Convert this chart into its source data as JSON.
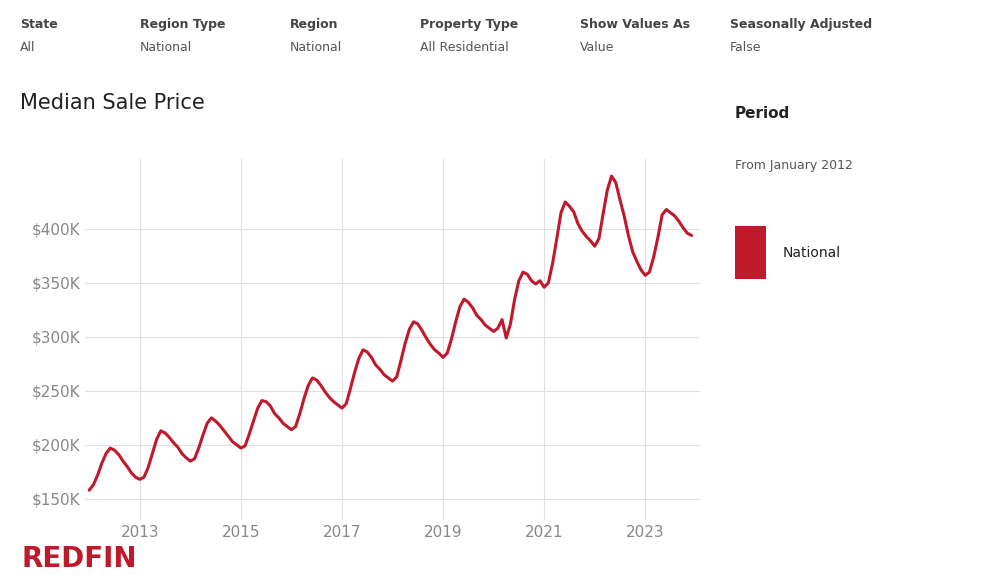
{
  "title": "Median Sale Price",
  "line_color": "#C0192C",
  "background_color": "#FFFFFF",
  "ylim": [
    130000,
    465000
  ],
  "yticks": [
    150000,
    200000,
    250000,
    300000,
    350000,
    400000
  ],
  "header_labels": [
    [
      "State",
      "All"
    ],
    [
      "Region Type",
      "National"
    ],
    [
      "Region",
      "National"
    ],
    [
      "Property Type",
      "All Residential"
    ],
    [
      "Show Values As",
      "Value"
    ],
    [
      "Seasonally Adjusted",
      "False"
    ]
  ],
  "legend_title": "Period",
  "legend_subtitle": "From January 2012",
  "legend_series": "National",
  "redfin_color": "#C0192C",
  "values": [
    158000,
    163000,
    172000,
    183000,
    192000,
    197000,
    195000,
    191000,
    185000,
    180000,
    174000,
    170000,
    168000,
    170000,
    179000,
    192000,
    205000,
    213000,
    211000,
    207000,
    202000,
    198000,
    192000,
    188000,
    185000,
    187000,
    197000,
    209000,
    220000,
    225000,
    222000,
    218000,
    213000,
    208000,
    203000,
    200000,
    197000,
    199000,
    210000,
    222000,
    234000,
    241000,
    240000,
    236000,
    229000,
    225000,
    220000,
    217000,
    214000,
    217000,
    229000,
    243000,
    255000,
    262000,
    260000,
    255000,
    249000,
    244000,
    240000,
    237000,
    234000,
    238000,
    252000,
    267000,
    280000,
    288000,
    286000,
    281000,
    274000,
    270000,
    265000,
    262000,
    259000,
    263000,
    278000,
    294000,
    307000,
    314000,
    312000,
    306000,
    299000,
    293000,
    288000,
    285000,
    281000,
    285000,
    298000,
    314000,
    328000,
    335000,
    332000,
    327000,
    320000,
    316000,
    311000,
    308000,
    305000,
    308000,
    316000,
    299000,
    312000,
    335000,
    352000,
    360000,
    358000,
    352000,
    349000,
    352000,
    346000,
    350000,
    368000,
    391000,
    415000,
    425000,
    421000,
    416000,
    405000,
    398000,
    393000,
    389000,
    384000,
    391000,
    414000,
    436000,
    449000,
    443000,
    427000,
    412000,
    394000,
    379000,
    370000,
    362000,
    357000,
    360000,
    374000,
    392000,
    413000,
    418000,
    415000,
    412000,
    407000,
    401000,
    396000,
    394000
  ],
  "xtick_years": [
    "2013",
    "2015",
    "2017",
    "2019",
    "2021",
    "2023"
  ],
  "xtick_positions": [
    12,
    36,
    60,
    84,
    108,
    132
  ],
  "grid_color": "#E0E0E0",
  "tick_color": "#888888",
  "header_bold_color": "#444444",
  "header_val_color": "#555555",
  "title_color": "#222222"
}
